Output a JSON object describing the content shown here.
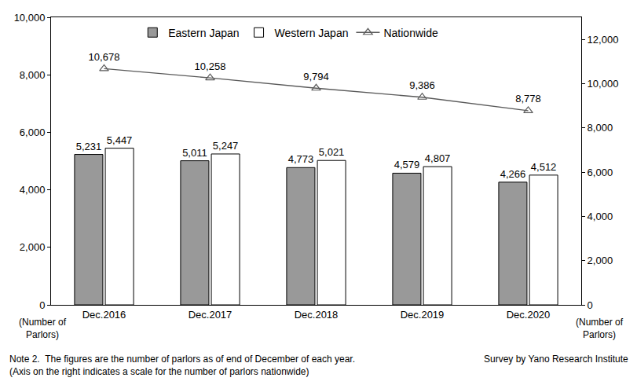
{
  "chart_data": {
    "type": "bar",
    "categories": [
      "Dec.2016",
      "Dec.2017",
      "Dec.2018",
      "Dec.2019",
      "Dec.2020"
    ],
    "series": [
      {
        "name": "Eastern Japan",
        "type": "bar",
        "color": "#999999",
        "values": [
          5231,
          5011,
          4773,
          4579,
          4266
        ],
        "value_labels": [
          "5,231",
          "5,011",
          "4,773",
          "4,579",
          "4,266"
        ]
      },
      {
        "name": "Western Japan",
        "type": "bar",
        "color": "#ffffff",
        "values": [
          5447,
          5247,
          5021,
          4807,
          4512
        ],
        "value_labels": [
          "5,447",
          "5,247",
          "5,021",
          "4,807",
          "4,512"
        ]
      },
      {
        "name": "Nationwide",
        "type": "line",
        "axis": "y2",
        "color": "#595959",
        "marker": "triangle-up-open",
        "line_style": "solid",
        "values": [
          10678,
          10258,
          9794,
          9386,
          8778
        ],
        "value_labels": [
          "10,678",
          "10,258",
          "9,794",
          "9,386",
          "8,778"
        ]
      }
    ],
    "ylim": [
      0,
      10000
    ],
    "yticks": [
      0,
      {
        "value": 2000,
        "label": "2,000"
      },
      {
        "value": 4000,
        "label": "4,000"
      },
      {
        "value": 6000,
        "label": "6,000"
      },
      {
        "value": 8000,
        "label": "8,000"
      },
      {
        "value": 10000,
        "label": "10,000"
      }
    ],
    "y2lim": [
      0,
      13000
    ],
    "y2ticks": [
      0,
      {
        "value": 2000,
        "label": "2,000"
      },
      {
        "value": 4000,
        "label": "4,000"
      },
      {
        "value": 6000,
        "label": "6,000"
      },
      {
        "value": 8000,
        "label": "8,000"
      },
      {
        "value": 10000,
        "label": "10,000"
      },
      {
        "value": 12000,
        "label": "12,000"
      }
    ],
    "y_label": [
      "(Number of",
      "Parlors)"
    ],
    "y2_label": [
      "(Number of",
      "Parlors)"
    ],
    "notes": [
      "Note 2.  The figures are the number of parlors as of end of December of each year.",
      "(Axis on the right indicates a scale for the number of parlors nationwide)"
    ],
    "source": "Survey by Yano Research Institute",
    "grid": false,
    "legend": "top",
    "data_labels": true
  }
}
